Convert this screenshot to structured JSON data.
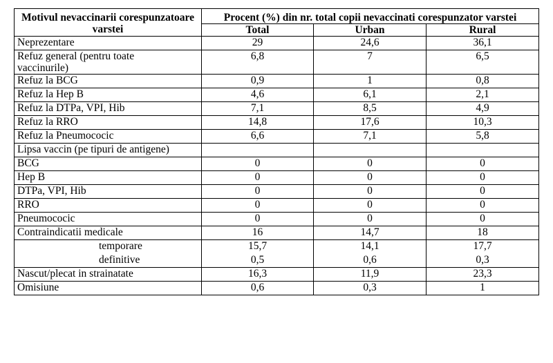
{
  "header": {
    "col1": "Motivul nevaccinarii corespunzatoare varstei",
    "col2": "Procent (%) din nr. total copii nevaccinati corespunzator varstei",
    "sub": [
      "Total",
      "Urban",
      "Rural"
    ]
  },
  "rows": [
    {
      "label": "Neprezentare",
      "total": "29",
      "urban": "24,6",
      "rural": "36,1"
    },
    {
      "label": "Refuz general (pentru toate vaccinurile)",
      "total": "6,8",
      "urban": "7",
      "rural": "6,5"
    },
    {
      "label": "Refuz la BCG",
      "total": "0,9",
      "urban": "1",
      "rural": "0,8"
    },
    {
      "label": "Refuz la Hep B",
      "total": "4,6",
      "urban": "6,1",
      "rural": "2,1"
    },
    {
      "label": "Refuz la DTPa, VPI, Hib",
      "total": "7,1",
      "urban": "8,5",
      "rural": "4,9"
    },
    {
      "label": "Refuz la RRO",
      "total": "14,8",
      "urban": "17,6",
      "rural": "10,3"
    },
    {
      "label": "Refuz la Pneumococic",
      "total": "6,6",
      "urban": "7,1",
      "rural": "5,8"
    },
    {
      "label": "Lipsa vaccin (pe tipuri de antigene)",
      "total": "",
      "urban": "",
      "rural": ""
    },
    {
      "label": "BCG",
      "total": "0",
      "urban": "0",
      "rural": "0"
    },
    {
      "label": "Hep B",
      "total": "0",
      "urban": "0",
      "rural": "0"
    },
    {
      "label": "DTPa, VPI, Hib",
      "total": "0",
      "urban": "0",
      "rural": "0"
    },
    {
      "label": "RRO",
      "total": "0",
      "urban": "0",
      "rural": "0"
    },
    {
      "label": "Pneumococic",
      "total": "0",
      "urban": "0",
      "rural": "0"
    },
    {
      "label": "Contraindicatii medicale",
      "total": "16",
      "urban": "14,7",
      "rural": "18"
    },
    {
      "label": "temporare",
      "total": "15,7",
      "urban": "14,1",
      "rural": "17,7"
    },
    {
      "label": "definitive",
      "total": "0,5",
      "urban": "0,6",
      "rural": "0,3"
    },
    {
      "label": "Nascut/plecat in strainatate",
      "total": "16,3",
      "urban": "11,9",
      "rural": "23,3"
    },
    {
      "label": "Omisiune",
      "total": "0,6",
      "urban": "0,3",
      "rural": "1"
    }
  ]
}
